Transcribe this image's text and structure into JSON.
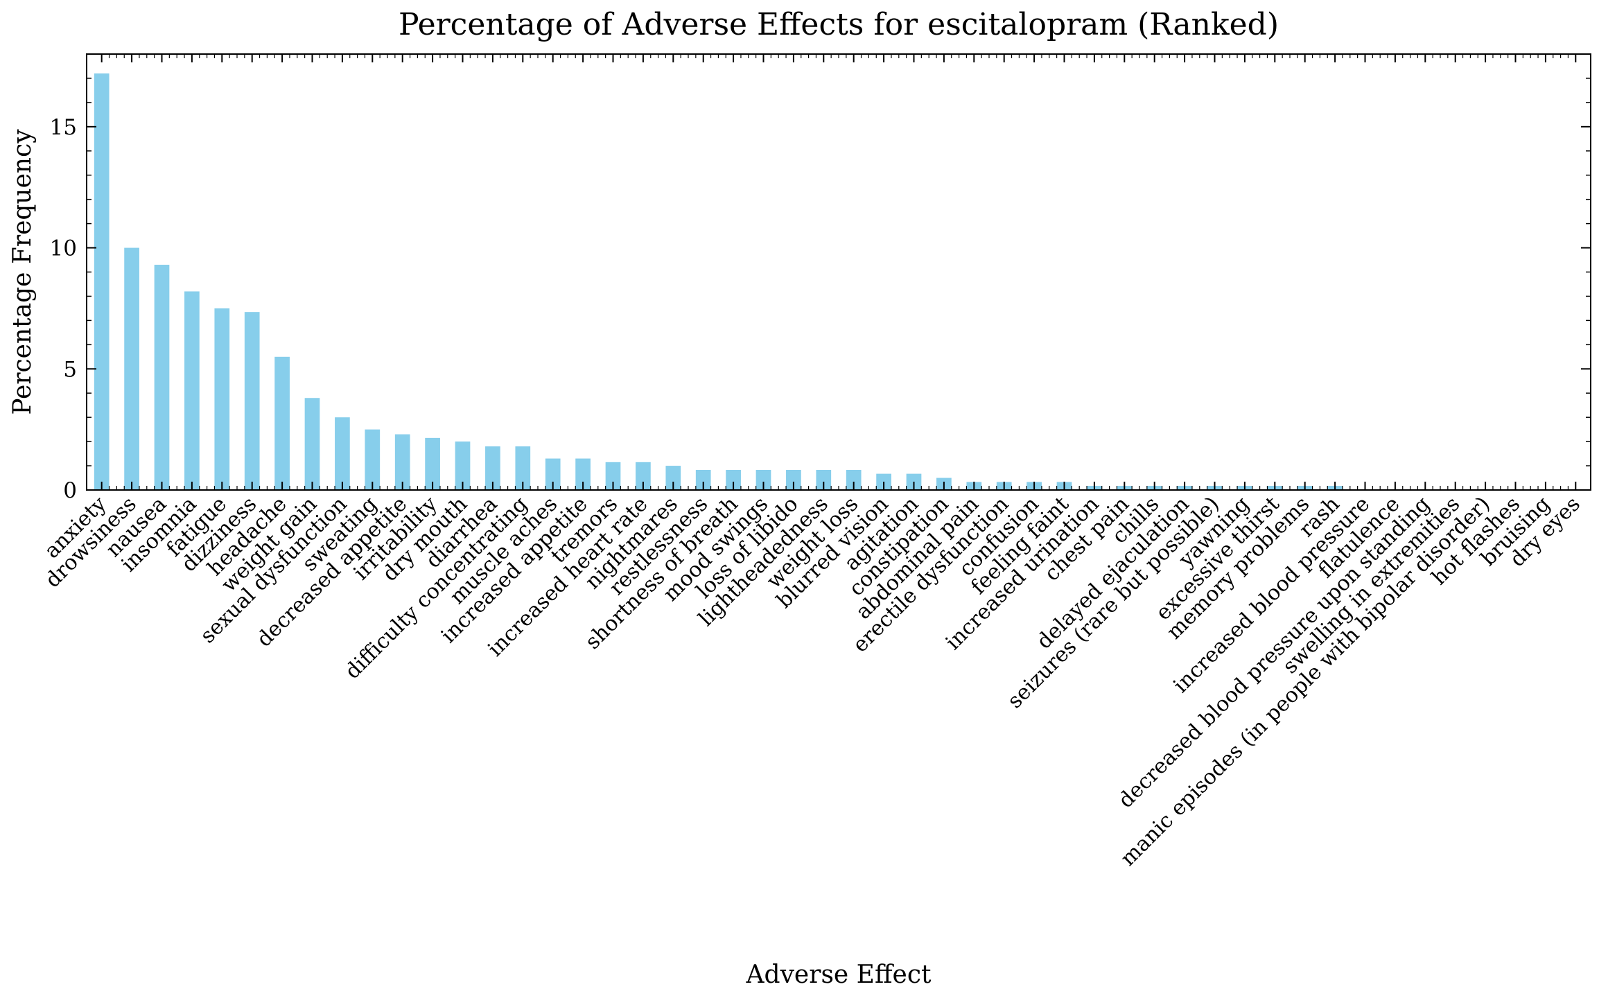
{
  "chart_data": {
    "type": "bar",
    "title": "Percentage of Adverse Effects for escitalopram (Ranked)",
    "xlabel": "Adverse Effect",
    "ylabel": "Percentage Frequency",
    "ylim": [
      0,
      18
    ],
    "yticks": [
      0,
      5,
      10,
      15
    ],
    "grid": false,
    "bar_color": "#87ceeb",
    "categories": [
      "anxiety",
      "drowsiness",
      "nausea",
      "insomnia",
      "fatigue",
      "dizziness",
      "headache",
      "weight gain",
      "sexual dysfunction",
      "sweating",
      "decreased appetite",
      "irritability",
      "dry mouth",
      "diarrhea",
      "difficulty concentrating",
      "muscle aches",
      "increased appetite",
      "tremors",
      "increased heart rate",
      "nightmares",
      "restlessness",
      "shortness of breath",
      "mood swings",
      "loss of libido",
      "lightheadedness",
      "weight loss",
      "blurred vision",
      "agitation",
      "constipation",
      "abdominal pain",
      "erectile dysfunction",
      "confusion",
      "feeling faint",
      "increased urination",
      "chest pain",
      "chills",
      "delayed ejaculation",
      "seizures (rare but possible)",
      "yawning",
      "excessive thirst",
      "memory problems",
      "rash",
      "increased blood pressure",
      "flatulence",
      "decreased blood pressure upon standing",
      "swelling in extremities",
      "manic episodes (in people with bipolar disorder)",
      "hot flashes",
      "bruising",
      "dry eyes"
    ],
    "values": [
      17.2,
      10.0,
      9.3,
      8.2,
      7.5,
      7.35,
      5.5,
      3.8,
      3.0,
      2.5,
      2.3,
      2.15,
      2.0,
      1.8,
      1.8,
      1.3,
      1.3,
      1.15,
      1.15,
      1.0,
      0.83,
      0.83,
      0.83,
      0.83,
      0.83,
      0.83,
      0.67,
      0.67,
      0.5,
      0.33,
      0.33,
      0.33,
      0.33,
      0.17,
      0.17,
      0.17,
      0.17,
      0.17,
      0.17,
      0.17,
      0.17,
      0.17,
      0.02,
      0.02,
      0.02,
      0.02,
      0.02,
      0.02,
      0.02,
      0.02
    ]
  }
}
